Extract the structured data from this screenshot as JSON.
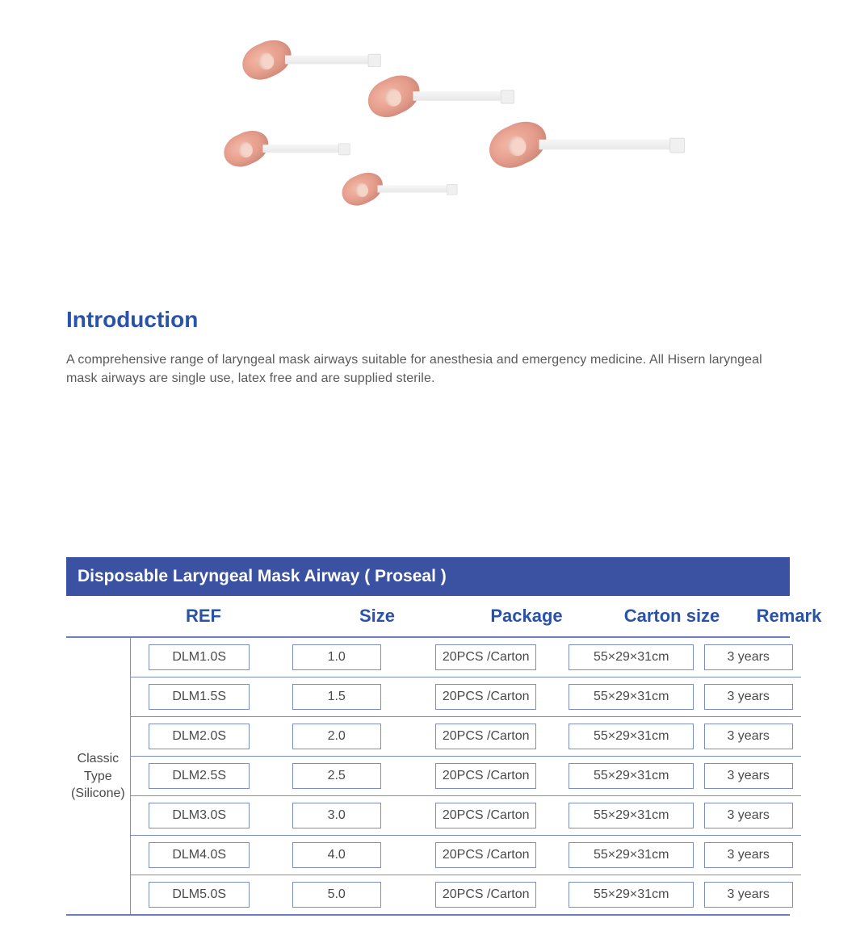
{
  "colors": {
    "heading": "#2a52a8",
    "tableHeaderBg": "#3b51a2",
    "tableHeaderText": "#ffffff",
    "border": "#7a8dc4",
    "bodyText": "#5a5a5a",
    "cellText": "#4a4a4a",
    "background": "#ffffff",
    "cuff": "#e8a190"
  },
  "intro": {
    "heading": "Introduction",
    "text": "A comprehensive range of laryngeal mask airways suitable for anesthesia and emergency medicine. All Hisern laryngeal mask airways are single use, latex free and are supplied sterile."
  },
  "table": {
    "title": "Disposable Laryngeal Mask Airway ( Proseal )",
    "columns": [
      "REF",
      "Size",
      "Package",
      "Carton  size",
      "Remark"
    ],
    "typeLabel1": "Classic Type",
    "typeLabel2": "(Silicone)",
    "rows": [
      {
        "ref": "DLM1.0S",
        "size": "1.0",
        "package": "20PCS /Carton",
        "carton": "55×29×31cm",
        "remark": "3 years"
      },
      {
        "ref": "DLM1.5S",
        "size": "1.5",
        "package": "20PCS /Carton",
        "carton": "55×29×31cm",
        "remark": "3 years"
      },
      {
        "ref": "DLM2.0S",
        "size": "2.0",
        "package": "20PCS /Carton",
        "carton": "55×29×31cm",
        "remark": "3 years"
      },
      {
        "ref": "DLM2.5S",
        "size": "2.5",
        "package": "20PCS /Carton",
        "carton": "55×29×31cm",
        "remark": "3 years"
      },
      {
        "ref": "DLM3.0S",
        "size": "3.0",
        "package": "20PCS /Carton",
        "carton": "55×29×31cm",
        "remark": "3 years"
      },
      {
        "ref": "DLM4.0S",
        "size": "4.0",
        "package": "20PCS /Carton",
        "carton": "55×29×31cm",
        "remark": "3 years"
      },
      {
        "ref": "DLM5.0S",
        "size": "5.0",
        "package": "20PCS /Carton",
        "carton": "55×29×31cm",
        "remark": "3 years"
      }
    ]
  }
}
